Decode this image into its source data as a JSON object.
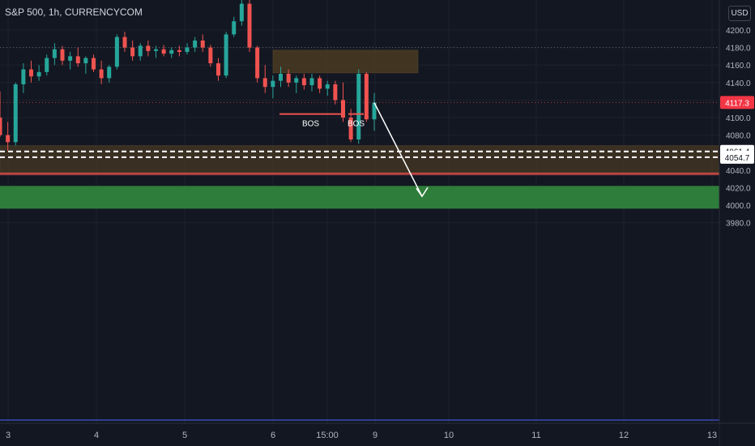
{
  "header": {
    "symbol_line": "S&P 500, 1h, CURRENCYCOM",
    "currency_button": "USD"
  },
  "colors": {
    "background": "#131722",
    "up": "#26a69a",
    "down": "#ef5350",
    "supply_zone": "#4a3b22",
    "demand_zone": "#2e7d3a",
    "price_label_bg": "#f23645"
  },
  "chart_data": {
    "type": "candlestick",
    "title": "S&P 500, 1h, CURRENCYCOM",
    "xlabel": "",
    "ylabel": "",
    "ylim": [
      3975,
      4222
    ],
    "y_ticks": [
      3980,
      4000,
      4020,
      4040,
      4060,
      4080,
      4100,
      4120,
      4140,
      4160,
      4180,
      4200
    ],
    "x_ticks": [
      "3",
      "4",
      "5",
      "6",
      "15:00",
      "9",
      "10",
      "11",
      "12",
      "13"
    ],
    "grid": true,
    "current_price": 4117.3,
    "horizontal_levels": [
      {
        "label": "4061.4",
        "value": 4061.4,
        "style": "dashed"
      },
      {
        "label": "4054.7",
        "value": 4054.7,
        "style": "dashed"
      }
    ],
    "support_lines": [
      4036.5,
      4035
    ],
    "resistance_dotted": 4180,
    "zones": [
      {
        "kind": "supply",
        "y_top": 4177,
        "y_bottom": 4151,
        "x_start": "6",
        "x_end": "9"
      },
      {
        "kind": "demand",
        "y_top": 4068,
        "y_bottom": 4037,
        "x_start": "3",
        "x_end": "13"
      },
      {
        "kind": "target",
        "y_top": 4022,
        "y_bottom": 3996,
        "x_start": "3",
        "x_end": "13"
      }
    ],
    "annotations": [
      {
        "text": "BOS",
        "level": 4104,
        "x_start": "6",
        "x_end": "15:00"
      },
      {
        "text": "BOS",
        "level": 4104,
        "x_start": "15:00",
        "x_end": "9"
      }
    ],
    "projection": {
      "from_price": 4117,
      "to_price": 4010
    },
    "candles": [
      {
        "o": 4100,
        "h": 4130,
        "l": 4078,
        "c": 4080
      },
      {
        "o": 4080,
        "h": 4095,
        "l": 4062,
        "c": 4072
      },
      {
        "o": 4072,
        "h": 4140,
        "l": 4068,
        "c": 4138
      },
      {
        "o": 4138,
        "h": 4162,
        "l": 4128,
        "c": 4155
      },
      {
        "o": 4155,
        "h": 4165,
        "l": 4140,
        "c": 4147
      },
      {
        "o": 4147,
        "h": 4160,
        "l": 4142,
        "c": 4152
      },
      {
        "o": 4152,
        "h": 4172,
        "l": 4148,
        "c": 4168
      },
      {
        "o": 4168,
        "h": 4185,
        "l": 4160,
        "c": 4178
      },
      {
        "o": 4178,
        "h": 4182,
        "l": 4160,
        "c": 4165
      },
      {
        "o": 4165,
        "h": 4175,
        "l": 4155,
        "c": 4170
      },
      {
        "o": 4170,
        "h": 4180,
        "l": 4158,
        "c": 4162
      },
      {
        "o": 4162,
        "h": 4170,
        "l": 4150,
        "c": 4168
      },
      {
        "o": 4168,
        "h": 4172,
        "l": 4152,
        "c": 4155
      },
      {
        "o": 4155,
        "h": 4165,
        "l": 4138,
        "c": 4145
      },
      {
        "o": 4145,
        "h": 4160,
        "l": 4140,
        "c": 4158
      },
      {
        "o": 4158,
        "h": 4195,
        "l": 4155,
        "c": 4192
      },
      {
        "o": 4192,
        "h": 4198,
        "l": 4175,
        "c": 4180
      },
      {
        "o": 4180,
        "h": 4188,
        "l": 4165,
        "c": 4170
      },
      {
        "o": 4170,
        "h": 4185,
        "l": 4165,
        "c": 4182
      },
      {
        "o": 4182,
        "h": 4188,
        "l": 4170,
        "c": 4176
      },
      {
        "o": 4176,
        "h": 4182,
        "l": 4168,
        "c": 4178
      },
      {
        "o": 4178,
        "h": 4183,
        "l": 4170,
        "c": 4173
      },
      {
        "o": 4173,
        "h": 4180,
        "l": 4168,
        "c": 4177
      },
      {
        "o": 4177,
        "h": 4182,
        "l": 4170,
        "c": 4175
      },
      {
        "o": 4175,
        "h": 4185,
        "l": 4172,
        "c": 4180
      },
      {
        "o": 4180,
        "h": 4192,
        "l": 4175,
        "c": 4188
      },
      {
        "o": 4188,
        "h": 4195,
        "l": 4175,
        "c": 4180
      },
      {
        "o": 4180,
        "h": 4183,
        "l": 4158,
        "c": 4162
      },
      {
        "o": 4162,
        "h": 4168,
        "l": 4142,
        "c": 4148
      },
      {
        "o": 4148,
        "h": 4198,
        "l": 4145,
        "c": 4195
      },
      {
        "o": 4195,
        "h": 4215,
        "l": 4192,
        "c": 4210
      },
      {
        "o": 4210,
        "h": 4235,
        "l": 4205,
        "c": 4230
      },
      {
        "o": 4230,
        "h": 4235,
        "l": 4175,
        "c": 4180
      },
      {
        "o": 4180,
        "h": 4182,
        "l": 4140,
        "c": 4145
      },
      {
        "o": 4145,
        "h": 4160,
        "l": 4128,
        "c": 4135
      },
      {
        "o": 4135,
        "h": 4148,
        "l": 4122,
        "c": 4142
      },
      {
        "o": 4142,
        "h": 4158,
        "l": 4135,
        "c": 4150
      },
      {
        "o": 4150,
        "h": 4155,
        "l": 4135,
        "c": 4140
      },
      {
        "o": 4140,
        "h": 4148,
        "l": 4128,
        "c": 4145
      },
      {
        "o": 4145,
        "h": 4150,
        "l": 4132,
        "c": 4137
      },
      {
        "o": 4137,
        "h": 4150,
        "l": 4130,
        "c": 4145
      },
      {
        "o": 4145,
        "h": 4148,
        "l": 4128,
        "c": 4133
      },
      {
        "o": 4133,
        "h": 4142,
        "l": 4125,
        "c": 4138
      },
      {
        "o": 4138,
        "h": 4142,
        "l": 4115,
        "c": 4120
      },
      {
        "o": 4120,
        "h": 4140,
        "l": 4095,
        "c": 4100
      },
      {
        "o": 4100,
        "h": 4110,
        "l": 4072,
        "c": 4075
      },
      {
        "o": 4075,
        "h": 4155,
        "l": 4070,
        "c": 4150
      },
      {
        "o": 4150,
        "h": 4152,
        "l": 4095,
        "c": 4098
      },
      {
        "o": 4098,
        "h": 4128,
        "l": 4085,
        "c": 4117
      }
    ]
  }
}
